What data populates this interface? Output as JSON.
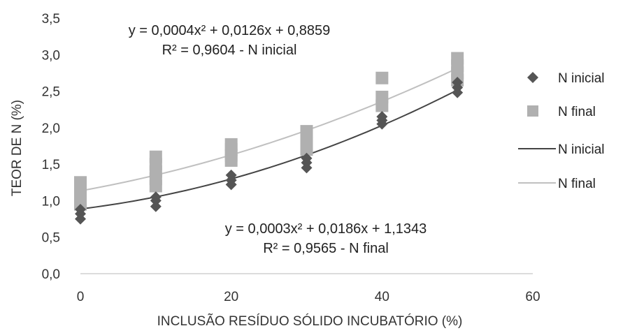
{
  "chart_data": {
    "type": "scatter",
    "xlabel": "INCLUSÃO  RESÍDUO SÓLIDO INCUBATÓRIO  (%)",
    "ylabel": "TEOR DE N (%)",
    "xlim": [
      0,
      60
    ],
    "ylim": [
      0.0,
      3.5
    ],
    "x_ticks": [
      "0",
      "20",
      "40",
      "60"
    ],
    "y_ticks": [
      "0,0",
      "0,5",
      "1,0",
      "1,5",
      "2,0",
      "2,5",
      "3,0",
      "3,5"
    ],
    "grid": false,
    "legend_position": "right",
    "series": [
      {
        "name": "N inicial",
        "kind": "points",
        "marker": "diamond",
        "color": "#555555",
        "x": [
          0,
          0,
          0,
          10,
          10,
          10,
          20,
          20,
          20,
          30,
          30,
          30,
          40,
          40,
          40,
          50,
          50,
          50
        ],
        "y": [
          0.75,
          0.82,
          0.88,
          0.92,
          1.0,
          1.05,
          1.22,
          1.28,
          1.35,
          1.45,
          1.52,
          1.58,
          2.05,
          2.1,
          2.15,
          2.48,
          2.55,
          2.62
        ]
      },
      {
        "name": "N final",
        "kind": "points",
        "marker": "square",
        "color": "#b0b0b0",
        "x": [
          0,
          0,
          0,
          0,
          10,
          10,
          10,
          10,
          10,
          20,
          20,
          20,
          20,
          30,
          30,
          30,
          30,
          40,
          40,
          40,
          50,
          50,
          50,
          50
        ],
        "y": [
          0.95,
          1.05,
          1.15,
          1.25,
          1.2,
          1.3,
          1.4,
          1.5,
          1.6,
          1.55,
          1.62,
          1.7,
          1.77,
          1.7,
          1.78,
          1.86,
          1.95,
          2.3,
          2.42,
          2.68,
          2.65,
          2.75,
          2.85,
          2.95
        ]
      },
      {
        "name": "N inicial",
        "kind": "trendline",
        "color": "#444444",
        "coefficients": {
          "a": 0.0004,
          "b": 0.0126,
          "c": 0.8859
        }
      },
      {
        "name": "N final",
        "kind": "trendline",
        "color": "#c0c0c0",
        "coefficients": {
          "a": 0.0003,
          "b": 0.0186,
          "c": 1.1343
        }
      }
    ],
    "annotations": [
      {
        "line1": "y = 0,0004x² + 0,0126x + 0,8859",
        "line2": "R² = 0,9604 - N inicial"
      },
      {
        "line1": "y = 0,0003x² + 0,0186x + 1,1343",
        "line2": "R² = 0,9565 - N final"
      }
    ],
    "legend": [
      {
        "label": "N inicial",
        "symbol": "diamond",
        "color": "#555555"
      },
      {
        "label": "N final",
        "symbol": "square",
        "color": "#b0b0b0"
      },
      {
        "label": "N inicial",
        "symbol": "line",
        "color": "#444444"
      },
      {
        "label": "N final",
        "symbol": "line",
        "color": "#c0c0c0"
      }
    ]
  }
}
